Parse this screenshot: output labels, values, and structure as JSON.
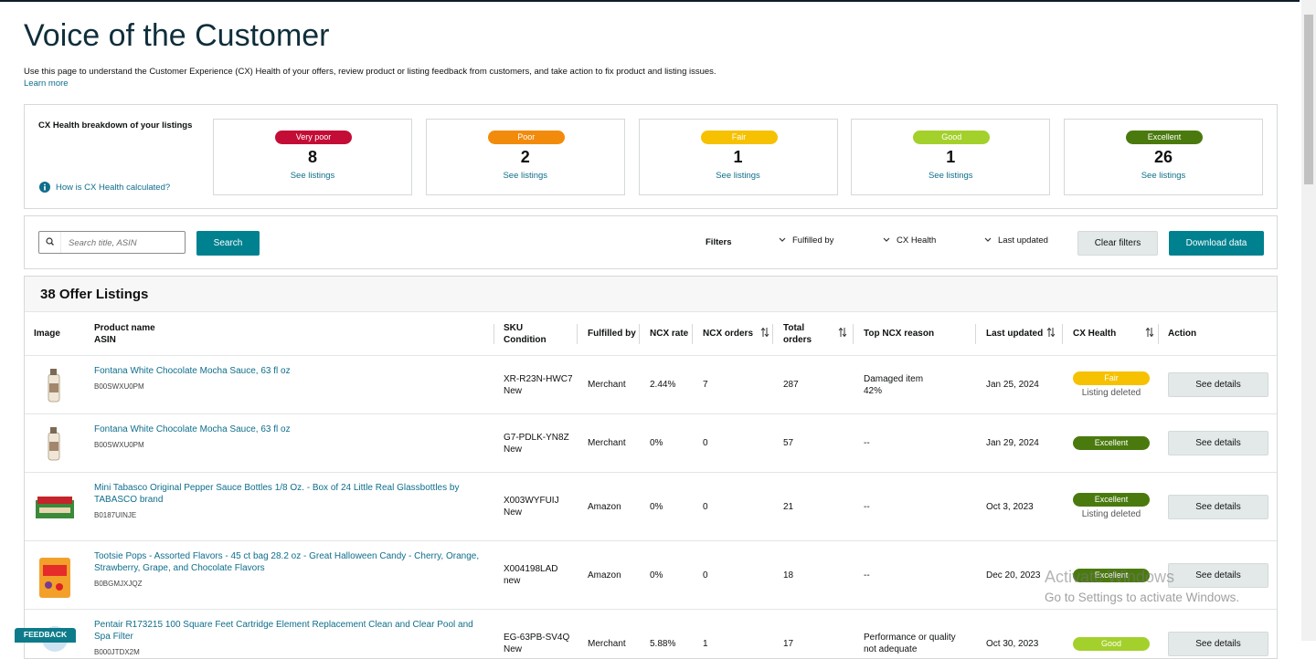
{
  "header": {
    "title": "Voice of the Customer",
    "description": "Use this page to understand the Customer Experience (CX) Health of your offers, review product or listing feedback from customers, and take action to fix product and listing issues.",
    "learn_more": "Learn more"
  },
  "health": {
    "label": "CX Health breakdown of your listings",
    "how_link": "How is CX Health calculated?",
    "cards": [
      {
        "badge": "Very poor",
        "count": 8,
        "link": "See listings"
      },
      {
        "badge": "Poor",
        "count": 2,
        "link": "See listings"
      },
      {
        "badge": "Fair",
        "count": 1,
        "link": "See listings"
      },
      {
        "badge": "Good",
        "count": 1,
        "link": "See listings"
      },
      {
        "badge": "Excellent",
        "count": 26,
        "link": "See listings"
      }
    ]
  },
  "toolbar": {
    "placeholder": "Search title, ASIN",
    "search": "Search",
    "filters_label": "Filters",
    "filters": [
      "Fulfilled by",
      "CX Health",
      "Last updated"
    ],
    "clear": "Clear filters",
    "download": "Download data"
  },
  "table": {
    "heading": "38 Offer Listings",
    "columns": {
      "image": "Image",
      "product": "Product name",
      "asin": "ASIN",
      "sku": "SKU",
      "condition": "Condition",
      "fulfilled": "Fulfilled by",
      "ncx_rate": "NCX rate",
      "ncx_orders": "NCX orders",
      "total_orders": "Total orders",
      "reason": "Top NCX reason",
      "last_updated": "Last updated",
      "health": "CX Health",
      "action": "Action"
    },
    "rows": [
      {
        "name": "Fontana White Chocolate Mocha Sauce, 63 fl oz",
        "asin": "B00SWXU0PM",
        "sku": "XR-R23N-HWC7",
        "condition": "New",
        "fulfilled": "Merchant",
        "ncx_rate": "2.44%",
        "ncx_orders": "7",
        "total_orders": "287",
        "reason": "Damaged item",
        "reason_pct": "42%",
        "last_updated": "Jan 25, 2024",
        "health": "Fair",
        "health_note": "Listing deleted",
        "action": "See details"
      },
      {
        "name": "Fontana White Chocolate Mocha Sauce, 63 fl oz",
        "asin": "B00SWXU0PM",
        "sku": "G7-PDLK-YN8Z",
        "condition": "New",
        "fulfilled": "Merchant",
        "ncx_rate": "0%",
        "ncx_orders": "0",
        "total_orders": "57",
        "reason": "--",
        "last_updated": "Jan 29, 2024",
        "health": "Excellent",
        "action": "See details"
      },
      {
        "name": "Mini Tabasco Original Pepper Sauce Bottles 1/8 Oz. - Box of 24 Little Real Glassbottles by TABASCO brand",
        "asin": "B0187UINJE",
        "sku": "X003WYFUIJ",
        "condition": "New",
        "fulfilled": "Amazon",
        "ncx_rate": "0%",
        "ncx_orders": "0",
        "total_orders": "21",
        "reason": "--",
        "last_updated": "Oct 3, 2023",
        "health": "Excellent",
        "health_note": "Listing deleted",
        "action": "See details"
      },
      {
        "name": "Tootsie Pops - Assorted Flavors - 45 ct bag 28.2 oz - Great Halloween Candy - Cherry, Orange, Strawberry, Grape, and Chocolate Flavors",
        "asin": "B0BGMJXJQZ",
        "sku": "X004198LAD",
        "condition": "new",
        "fulfilled": "Amazon",
        "ncx_rate": "0%",
        "ncx_orders": "0",
        "total_orders": "18",
        "reason": "--",
        "last_updated": "Dec 20, 2023",
        "health": "Excellent",
        "action": "See details"
      },
      {
        "name": "Pentair R173215 100 Square Feet Cartridge Element Replacement Clean and Clear Pool and Spa Filter",
        "asin": "B000JTDX2M",
        "sku": "EG-63PB-SV4Q",
        "condition": "New",
        "fulfilled": "Merchant",
        "ncx_rate": "5.88%",
        "ncx_orders": "1",
        "total_orders": "17",
        "reason": "Performance or quality",
        "reason_pct": "not adequate",
        "last_updated": "Oct 30, 2023",
        "health": "Good",
        "action": "See details"
      }
    ]
  },
  "overlay": {
    "feedback": "FEEDBACK",
    "watermark_title": "Activate Windows",
    "watermark_text": "Go to Settings to activate Windows."
  }
}
